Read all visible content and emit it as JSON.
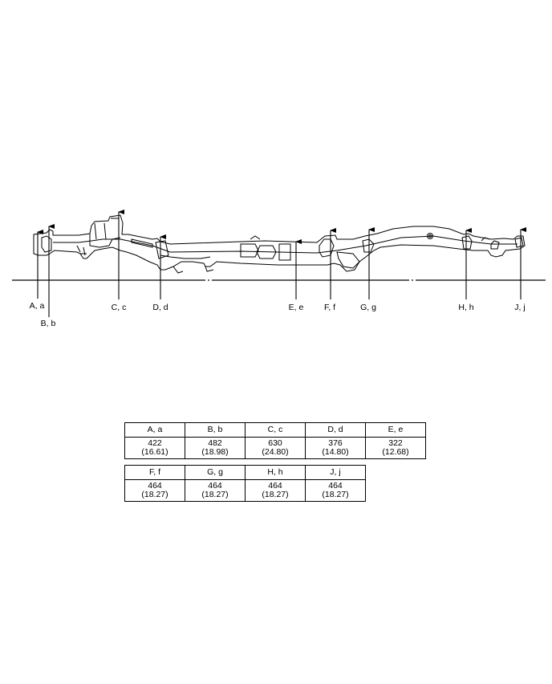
{
  "points": [
    {
      "id": "A",
      "label": "A, a"
    },
    {
      "id": "B",
      "label": "B, b"
    },
    {
      "id": "C",
      "label": "C, c"
    },
    {
      "id": "D",
      "label": "D, d"
    },
    {
      "id": "E",
      "label": "E, e"
    },
    {
      "id": "F",
      "label": "F, f"
    },
    {
      "id": "G",
      "label": "G, g"
    },
    {
      "id": "H",
      "label": "H, h"
    },
    {
      "id": "J",
      "label": "J, j"
    }
  ],
  "table": {
    "row1": [
      {
        "label": "A, a",
        "mm": "422",
        "in": "(16.61)"
      },
      {
        "label": "B, b",
        "mm": "482",
        "in": "(18.98)"
      },
      {
        "label": "C, c",
        "mm": "630",
        "in": "(24.80)"
      },
      {
        "label": "D, d",
        "mm": "376",
        "in": "(14.80)"
      },
      {
        "label": "E, e",
        "mm": "322",
        "in": "(12.68)"
      }
    ],
    "row2": [
      {
        "label": "F, f",
        "mm": "464",
        "in": "(18.27)"
      },
      {
        "label": "G, g",
        "mm": "464",
        "in": "(18.27)"
      },
      {
        "label": "H, h",
        "mm": "464",
        "in": "(18.27)"
      },
      {
        "label": "J, j",
        "mm": "464",
        "in": "(18.27)"
      }
    ]
  }
}
